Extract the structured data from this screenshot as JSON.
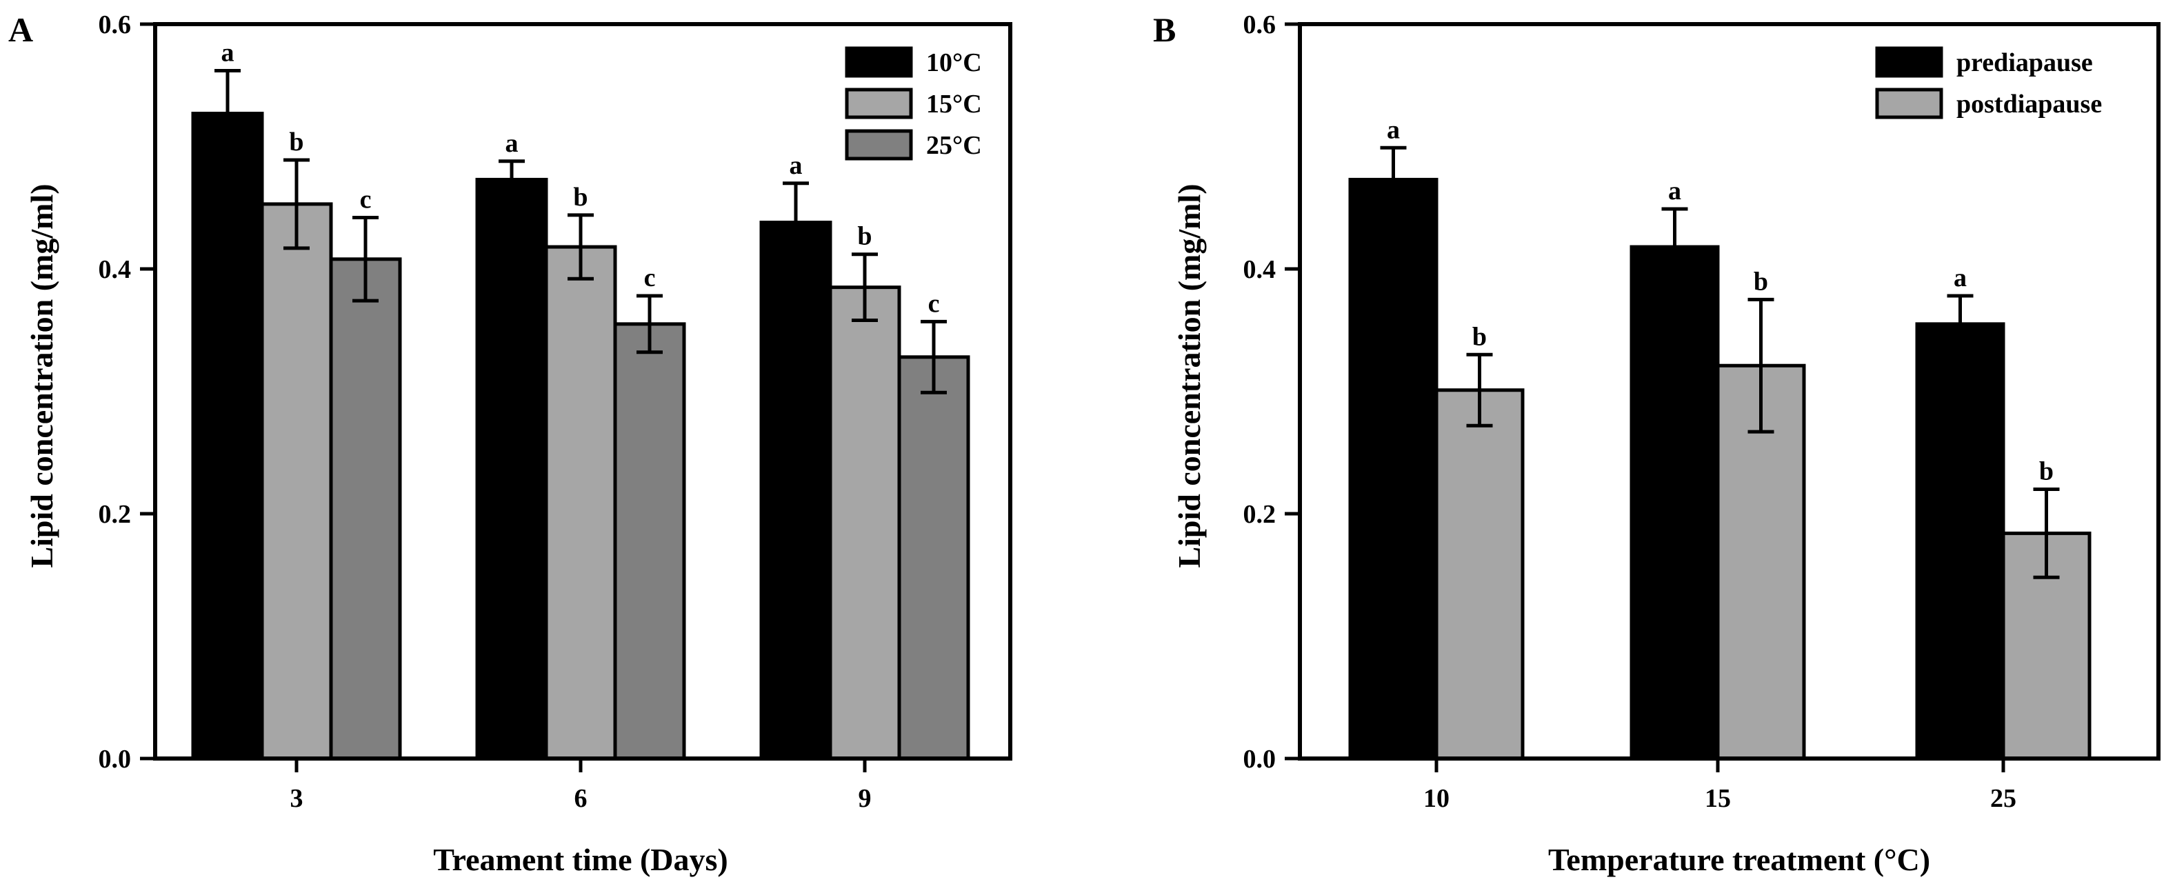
{
  "chart_data": [
    {
      "type": "bar",
      "panel_label": "A",
      "categories": [
        "3",
        "6",
        "9"
      ],
      "series": [
        {
          "name": "10°C",
          "values": [
            0.527,
            0.473,
            0.438
          ],
          "errors": [
            0.035,
            0.015,
            0.032
          ],
          "letters": [
            "a",
            "a",
            "a"
          ]
        },
        {
          "name": "15°C",
          "values": [
            0.453,
            0.418,
            0.385
          ],
          "errors": [
            0.036,
            0.026,
            0.027
          ],
          "letters": [
            "b",
            "b",
            "b"
          ]
        },
        {
          "name": "25°C",
          "values": [
            0.408,
            0.355,
            0.328
          ],
          "errors": [
            0.034,
            0.023,
            0.029
          ],
          "letters": [
            "c",
            "c",
            "c"
          ]
        }
      ],
      "xlabel": "Treament time (Days)",
      "ylabel": "Lipid concentration (mg/ml)",
      "ylim": [
        0,
        0.6
      ],
      "yticks": [
        "0.0",
        "0.2",
        "0.4",
        "0.6"
      ],
      "legend": "top-right",
      "grid": false
    },
    {
      "type": "bar",
      "panel_label": "B",
      "categories": [
        "10",
        "15",
        "25"
      ],
      "series": [
        {
          "name": "prediapause",
          "values": [
            0.473,
            0.418,
            0.355
          ],
          "errors": [
            0.026,
            0.031,
            0.023
          ],
          "letters": [
            "a",
            "a",
            "a"
          ]
        },
        {
          "name": "postdiapause",
          "values": [
            0.301,
            0.321,
            0.184
          ],
          "errors": [
            0.029,
            0.054,
            0.036
          ],
          "letters": [
            "b",
            "b",
            "b"
          ]
        }
      ],
      "xlabel": "Temperature treatment (°C)",
      "ylabel": "Lipid concentration (mg/ml)",
      "ylim": [
        0,
        0.6
      ],
      "yticks": [
        "0.0",
        "0.2",
        "0.4",
        "0.6"
      ],
      "legend": "top-right",
      "grid": false
    }
  ],
  "colors": {
    "dark": "#000000",
    "light": "#a6a6a6",
    "mid": "#808080"
  }
}
